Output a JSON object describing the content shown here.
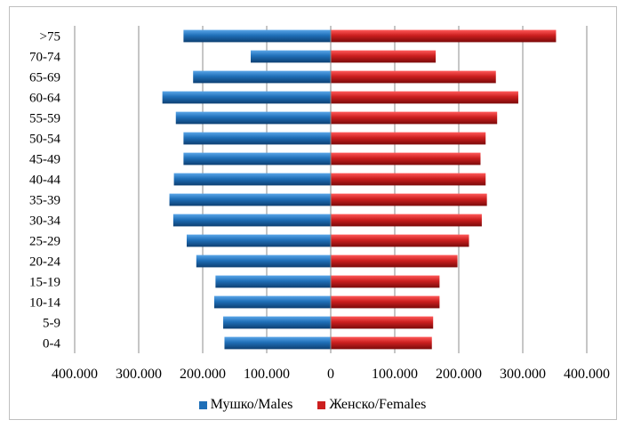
{
  "chart_data": {
    "type": "bar",
    "orientation": "horizontal",
    "categories": [
      ">75",
      "70-74",
      "65-69",
      "60-64",
      "55-59",
      "50-54",
      "45-49",
      "40-44",
      "35-39",
      "30-34",
      "25-29",
      "20-24",
      "15-19",
      "10-14",
      "5-9",
      "0-4"
    ],
    "series": [
      {
        "name": "Мушко/Males",
        "values": [
          -230000,
          -125000,
          -215000,
          -263000,
          -242000,
          -230000,
          -230000,
          -245000,
          -252000,
          -246000,
          -225000,
          -210000,
          -180000,
          -182000,
          -168000,
          -166000
        ],
        "color": "#1f6fb8"
      },
      {
        "name": "Женско/Females",
        "values": [
          352000,
          164000,
          258000,
          293000,
          260000,
          242000,
          234000,
          242000,
          244000,
          236000,
          216000,
          198000,
          170000,
          170000,
          160000,
          158000
        ],
        "color": "#cc1f1f"
      }
    ],
    "xlim": [
      -400000,
      400000
    ],
    "xticks": [
      -400000,
      -300000,
      -200000,
      -100000,
      0,
      100000,
      200000,
      300000,
      400000
    ],
    "xtick_labels": [
      "400.000",
      "300.000",
      "200.000",
      "100.000",
      "0",
      "100.000",
      "200.000",
      "300.000",
      "400.000"
    ],
    "grid": "vertical",
    "legend": "bottom"
  }
}
